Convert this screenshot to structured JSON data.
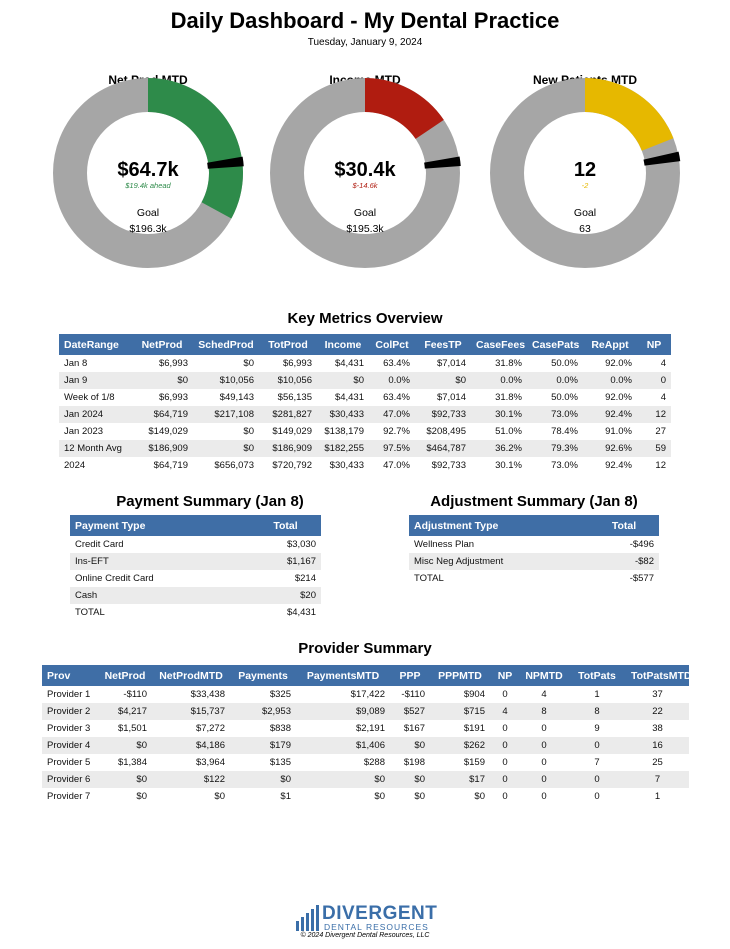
{
  "header": {
    "title": "Daily Dashboard - My Dental Practice",
    "date": "Tuesday, January 9, 2024"
  },
  "gauges": [
    {
      "title": "Net Prod MTD",
      "value": 64.7,
      "value_label": "$64.7k",
      "delta": 19.4,
      "delta_label": "$19.4k ahead",
      "goal_caption": "Goal",
      "goal": 196.3,
      "goal_label": "$196.3k",
      "color": "#2e8b4a",
      "delta_color": "#2e8b4a"
    },
    {
      "title": "Income MTD",
      "value": 30.4,
      "value_label": "$30.4k",
      "delta": -14.6,
      "delta_label": "$-14.6k",
      "goal_caption": "Goal",
      "goal": 195.3,
      "goal_label": "$195.3k",
      "color": "#b01c10",
      "delta_color": "#b01c10"
    },
    {
      "title": "New Patients MTD",
      "value": 12,
      "delta": -2,
      "goal_caption": "Goal",
      "goal": 63,
      "color": "#e6b800",
      "delta_color": "#e6b800"
    }
  ],
  "metrics": {
    "title": "Key Metrics Overview",
    "columns": [
      "DateRange",
      "NetProd",
      "SchedProd",
      "TotProd",
      "Income",
      "ColPct",
      "FeesTP",
      "CaseFees",
      "CasePats",
      "ReAppt",
      "NP"
    ],
    "rows": [
      [
        "Jan 8",
        "$6,993",
        "$0",
        "$6,993",
        "$4,431",
        "63.4%",
        "$7,014",
        "31.8%",
        "50.0%",
        "92.0%",
        "4"
      ],
      [
        "Jan 9",
        "$0",
        "$10,056",
        "$10,056",
        "$0",
        "0.0%",
        "$0",
        "0.0%",
        "0.0%",
        "0.0%",
        "0"
      ],
      [
        "Week of 1/8",
        "$6,993",
        "$49,143",
        "$56,135",
        "$4,431",
        "63.4%",
        "$7,014",
        "31.8%",
        "50.0%",
        "92.0%",
        "4"
      ],
      [
        "Jan 2024",
        "$64,719",
        "$217,108",
        "$281,827",
        "$30,433",
        "47.0%",
        "$92,733",
        "30.1%",
        "73.0%",
        "92.4%",
        "12"
      ],
      [
        "Jan 2023",
        "$149,029",
        "$0",
        "$149,029",
        "$138,179",
        "92.7%",
        "$208,495",
        "51.0%",
        "78.4%",
        "91.0%",
        "27"
      ],
      [
        "12 Month Avg",
        "$186,909",
        "$0",
        "$186,909",
        "$182,255",
        "97.5%",
        "$464,787",
        "36.2%",
        "79.3%",
        "92.6%",
        "59"
      ],
      [
        "2024",
        "$64,719",
        "$656,073",
        "$720,792",
        "$30,433",
        "47.0%",
        "$92,733",
        "30.1%",
        "73.0%",
        "92.4%",
        "12"
      ]
    ]
  },
  "payment": {
    "title": "Payment Summary (Jan 8)",
    "columns": [
      "Payment Type",
      "Total"
    ],
    "rows": [
      [
        "Credit Card",
        "$3,030"
      ],
      [
        "Ins-EFT",
        "$1,167"
      ],
      [
        "Online Credit Card",
        "$214"
      ],
      [
        "Cash",
        "$20"
      ],
      [
        "TOTAL",
        "$4,431"
      ]
    ]
  },
  "adjustment": {
    "title": "Adjustment Summary (Jan 8)",
    "columns": [
      "Adjustment Type",
      "Total"
    ],
    "rows": [
      [
        "Wellness Plan",
        "-$496"
      ],
      [
        "Misc Neg Adjustment",
        "-$82"
      ],
      [
        "TOTAL",
        "-$577"
      ]
    ]
  },
  "provider": {
    "title": "Provider Summary",
    "columns": [
      "Prov",
      "NetProd",
      "NetProdMTD",
      "Payments",
      "PaymentsMTD",
      "PPP",
      "PPPMTD",
      "NP",
      "NPMTD",
      "TotPats",
      "TotPatsMTD"
    ],
    "rows": [
      [
        "Provider 1",
        "-$110",
        "$33,438",
        "$325",
        "$17,422",
        "-$110",
        "$904",
        "0",
        "4",
        "1",
        "37"
      ],
      [
        "Provider 2",
        "$4,217",
        "$15,737",
        "$2,953",
        "$9,089",
        "$527",
        "$715",
        "4",
        "8",
        "8",
        "22"
      ],
      [
        "Provider 3",
        "$1,501",
        "$7,272",
        "$838",
        "$2,191",
        "$167",
        "$191",
        "0",
        "0",
        "9",
        "38"
      ],
      [
        "Provider 4",
        "$0",
        "$4,186",
        "$179",
        "$1,406",
        "$0",
        "$262",
        "0",
        "0",
        "0",
        "16"
      ],
      [
        "Provider 5",
        "$1,384",
        "$3,964",
        "$135",
        "$288",
        "$198",
        "$159",
        "0",
        "0",
        "7",
        "25"
      ],
      [
        "Provider 6",
        "$0",
        "$122",
        "$0",
        "$0",
        "$0",
        "$17",
        "0",
        "0",
        "0",
        "7"
      ],
      [
        "Provider 7",
        "$0",
        "$0",
        "$1",
        "$0",
        "$0",
        "$0",
        "0",
        "0",
        "0",
        "1"
      ]
    ]
  },
  "footer": {
    "logo_main": "DIVERGENT",
    "logo_sub": "DENTAL RESOURCES",
    "copyright": "© 2024 Divergent Dental Resources, LLC"
  }
}
